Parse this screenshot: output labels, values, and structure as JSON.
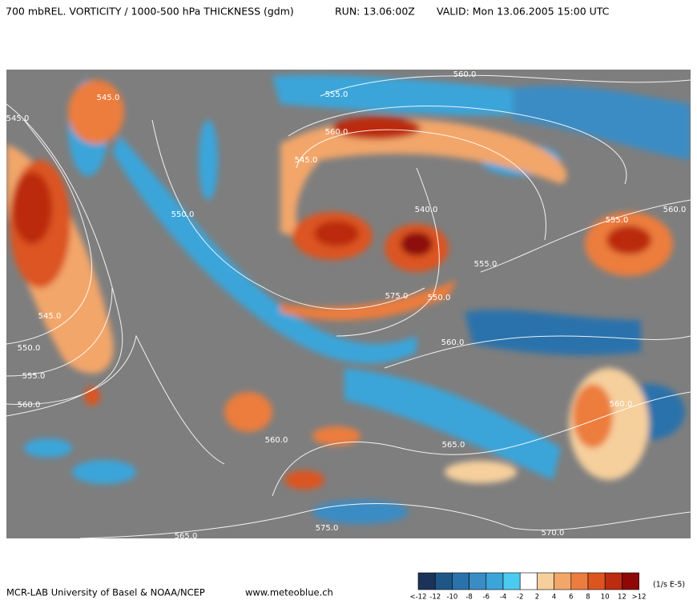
{
  "header": {
    "title": "700 mbREL. VORTICITY / 1000-500 hPa THICKNESS (gdm)",
    "run": "RUN: 13.06:00Z",
    "valid": "VALID:  Mon 13.06.2005  15:00 UTC"
  },
  "contour_labels": [
    "545.0",
    "545.0",
    "555.0",
    "560.0",
    "560.0",
    "545.0",
    "550.0",
    "540.0",
    "555.0",
    "560.0",
    "555.0",
    "545.0",
    "550.0",
    "555.0",
    "560.0",
    "575.0",
    "550.0",
    "560.0",
    "560.0",
    "565.0",
    "565.0",
    "575.0",
    "570.0",
    "560.0"
  ],
  "footer": {
    "credit": "MCR-LAB University of Basel  &  NOAA/NCEP",
    "website": "www.meteoblue.ch"
  },
  "legend": {
    "unit": "(1/s E-5)",
    "colors": [
      "#1b3358",
      "#1f5688",
      "#2a72ab",
      "#3a8cc4",
      "#3ba5da",
      "#4ccbf0",
      "#ffffff",
      "#f5cf9c",
      "#f2a66a",
      "#ec7d3e",
      "#dc5520",
      "#bb2c10",
      "#8e0808"
    ],
    "labels": [
      "<-12",
      "-12",
      "-10",
      "-8",
      "-6",
      "-4",
      "-2",
      "2",
      "4",
      "6",
      "8",
      "10",
      "12",
      ">12"
    ]
  }
}
